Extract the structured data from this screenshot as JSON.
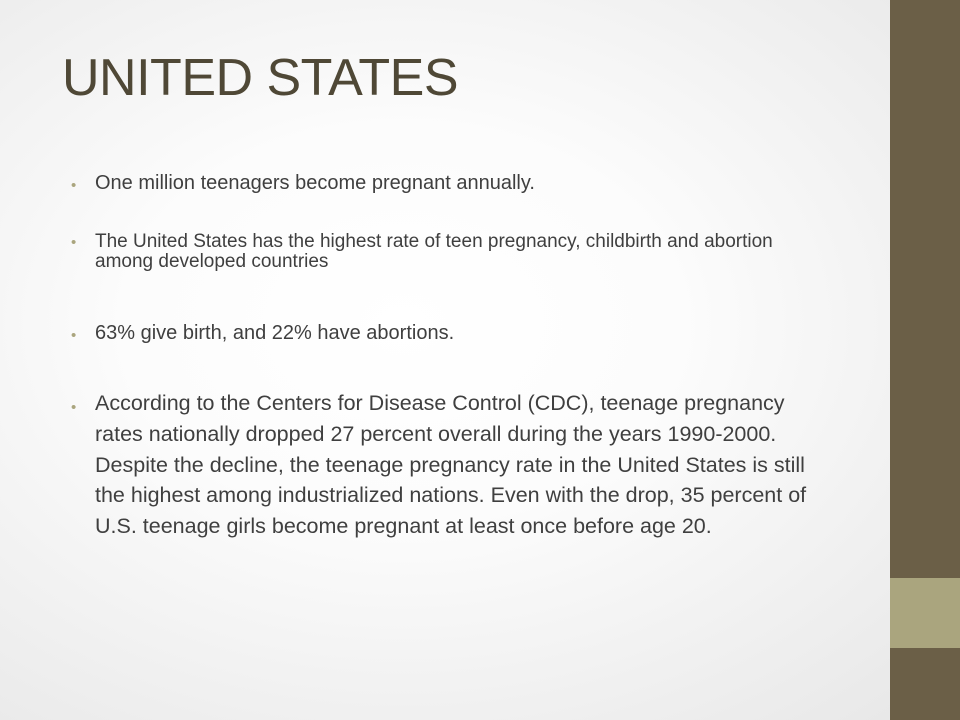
{
  "slide": {
    "title": "UNITED STATES",
    "bullet_symbol": "•",
    "bullets": [
      {
        "text": "One million teenagers become pregnant annually."
      },
      {
        "text": "The United States has the highest rate of teen pregnancy, childbirth and abortion among developed countries"
      },
      {
        "text": "63% give birth, and 22% have abortions."
      },
      {
        "text": "According to the Centers for Disease Control (CDC), teenage pregnancy rates nationally dropped 27 percent overall during the years 1990-2000. Despite the decline, the teenage pregnancy rate in the United States is still the highest among industrialized nations.  Even with the drop, 35 percent of U.S. teenage girls become pregnant at least once before age 20."
      }
    ]
  },
  "theme": {
    "title_color": "#4f4836",
    "text_color": "#3f3f3f",
    "bullet_color": "#aaa57e",
    "side_bar_color": "#6b5f47",
    "side_accent_color": "#aaa57e"
  }
}
